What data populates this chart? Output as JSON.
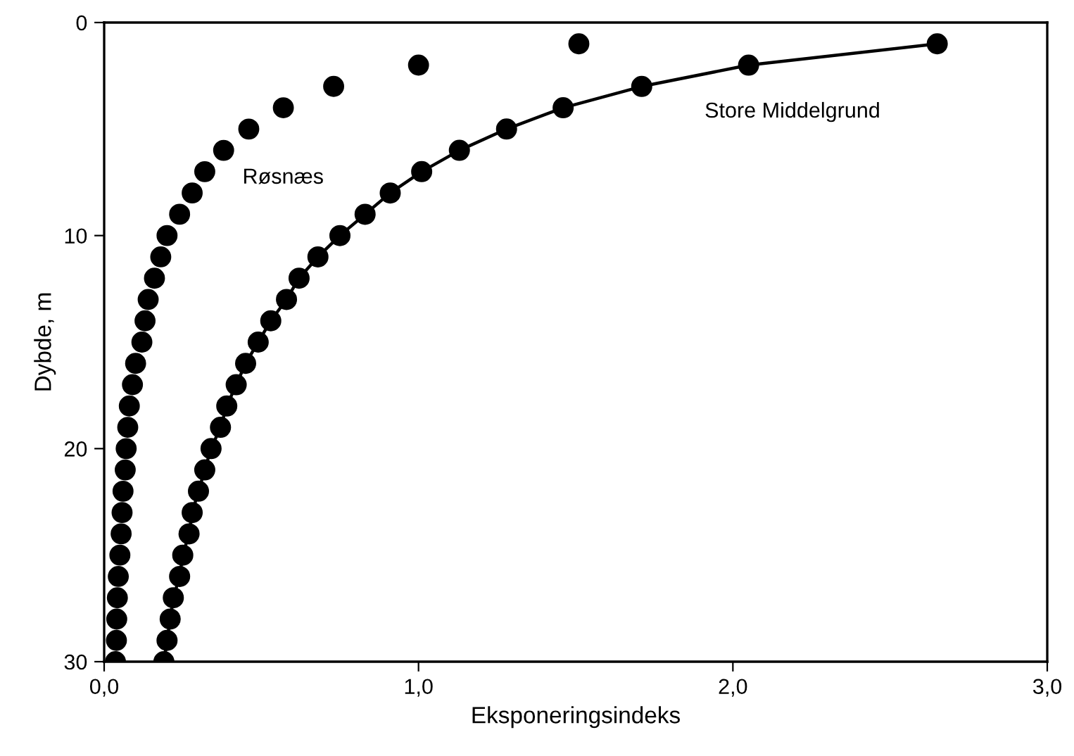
{
  "chart_data": {
    "type": "scatter",
    "xlabel": "Eksponeringsindeks",
    "ylabel": "Dybde, m",
    "xlim": [
      0,
      3
    ],
    "xticks": [
      {
        "value": 0,
        "label": "0,0"
      },
      {
        "value": 1,
        "label": "1,0"
      },
      {
        "value": 2,
        "label": "2,0"
      },
      {
        "value": 3,
        "label": "3,0"
      }
    ],
    "ylim": [
      30,
      0
    ],
    "yticks": [
      0,
      10,
      20,
      30
    ],
    "grid": false,
    "legend": false,
    "marker": "circle",
    "series": [
      {
        "name": "Røsnæs",
        "color": "#000000",
        "x": [
          1.51,
          1.0,
          0.73,
          0.57,
          0.46,
          0.38,
          0.32,
          0.28,
          0.24,
          0.2,
          0.18,
          0.16,
          0.14,
          0.13,
          0.12,
          0.1,
          0.09,
          0.08,
          0.075,
          0.07,
          0.067,
          0.06,
          0.057,
          0.054,
          0.05,
          0.045,
          0.042,
          0.04,
          0.039,
          0.036
        ],
        "values": [
          1,
          2,
          3,
          4,
          5,
          6,
          7,
          8,
          9,
          10,
          11,
          12,
          13,
          14,
          15,
          16,
          17,
          18,
          19,
          20,
          21,
          22,
          23,
          24,
          25,
          26,
          27,
          28,
          29,
          30
        ]
      },
      {
        "name": "Store Middelgrund",
        "type": "line",
        "color": "#000000",
        "line_style": "solid",
        "x": [
          2.65,
          2.05,
          1.71,
          1.46,
          1.28,
          1.13,
          1.01,
          0.91,
          0.83,
          0.75,
          0.68,
          0.62,
          0.58,
          0.53,
          0.49,
          0.45,
          0.42,
          0.39,
          0.37,
          0.34,
          0.32,
          0.3,
          0.28,
          0.27,
          0.25,
          0.24,
          0.22,
          0.21,
          0.2,
          0.19
        ],
        "values": [
          1,
          2,
          3,
          4,
          5,
          6,
          7,
          8,
          9,
          10,
          11,
          12,
          13,
          14,
          15,
          16,
          17,
          18,
          19,
          20,
          21,
          22,
          23,
          24,
          25,
          26,
          27,
          28,
          29,
          30
        ]
      }
    ]
  }
}
